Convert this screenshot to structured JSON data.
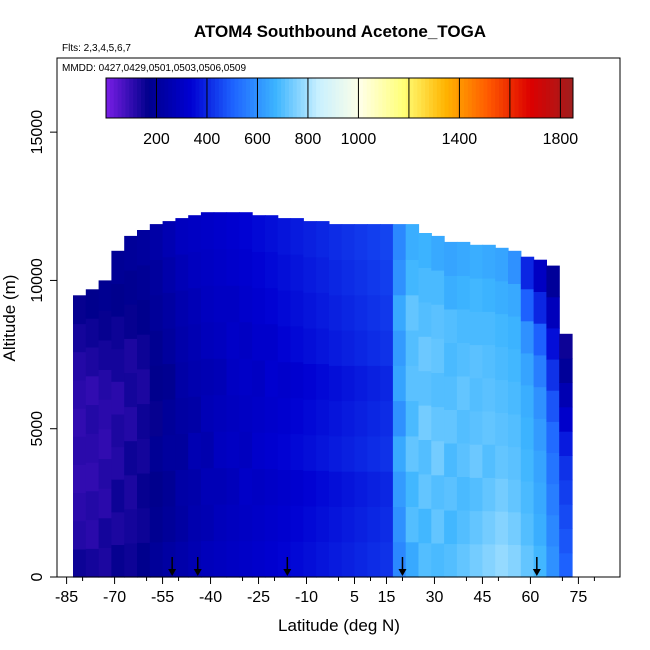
{
  "chart_data": {
    "type": "heatmap",
    "title": "ATOM4 Southbound Acetone_TOGA",
    "flights_note": "Flts: 2,3,4,5,6,7",
    "dates_note": "MMDD: 0427,0429,0501,0503,0506,0509",
    "xlabel": "Latitude (deg N)",
    "ylabel": "Altitude (m)",
    "xlim": [
      -88,
      88
    ],
    "ylim": [
      0,
      17500
    ],
    "xticks": [
      -85,
      -70,
      -55,
      -40,
      -25,
      -10,
      5,
      15,
      30,
      45,
      60,
      75
    ],
    "yticks": [
      0,
      5000,
      10000,
      15000
    ],
    "colorbar": {
      "min": 0,
      "max": 1850,
      "labels": [
        200,
        400,
        600,
        800,
        1000,
        1400,
        1800
      ],
      "divisions": [
        200,
        400,
        600,
        800,
        1000,
        1200,
        1400,
        1600,
        1800
      ],
      "colors": [
        "#7a1ee6",
        "#00008c",
        "#0000d2",
        "#1e64ff",
        "#3cb4ff",
        "#c8f0ff",
        "#ffffe6",
        "#ffff78",
        "#ffb400",
        "#ff5a00",
        "#dc0000",
        "#a01e1e"
      ]
    },
    "profile_columns": [
      {
        "lat": -81,
        "top": 9500,
        "values": [
          150,
          120,
          110,
          100,
          110,
          100,
          110,
          120,
          140,
          160
        ]
      },
      {
        "lat": -77,
        "top": 9700,
        "values": [
          140,
          110,
          120,
          100,
          110,
          120,
          100,
          130,
          150,
          170
        ]
      },
      {
        "lat": -73,
        "top": 10000,
        "values": [
          130,
          140,
          110,
          120,
          100,
          110,
          120,
          140,
          160,
          180
        ]
      },
      {
        "lat": -69,
        "top": 11000,
        "values": [
          160,
          130,
          150,
          120,
          130,
          110,
          140,
          150,
          170,
          190
        ]
      },
      {
        "lat": -65,
        "top": 11500,
        "values": [
          150,
          140,
          130,
          150,
          120,
          140,
          130,
          160,
          180,
          200
        ]
      },
      {
        "lat": -61,
        "top": 11700,
        "values": [
          170,
          150,
          160,
          140,
          150,
          130,
          150,
          170,
          190,
          210
        ]
      },
      {
        "lat": -57,
        "top": 11900,
        "values": [
          200,
          180,
          170,
          190,
          160,
          170,
          180,
          200,
          210,
          230
        ]
      },
      {
        "lat": -53,
        "top": 12000,
        "values": [
          220,
          200,
          190,
          210,
          200,
          180,
          210,
          220,
          240,
          260
        ]
      },
      {
        "lat": -49,
        "top": 12100,
        "values": [
          240,
          220,
          230,
          210,
          220,
          230,
          240,
          250,
          270,
          290
        ]
      },
      {
        "lat": -45,
        "top": 12200,
        "values": [
          260,
          250,
          240,
          260,
          230,
          250,
          260,
          270,
          290,
          300
        ]
      },
      {
        "lat": -41,
        "top": 12300,
        "values": [
          280,
          260,
          270,
          250,
          270,
          260,
          280,
          290,
          300,
          310
        ]
      },
      {
        "lat": -37,
        "top": 12300,
        "values": [
          290,
          280,
          270,
          290,
          280,
          270,
          290,
          300,
          310,
          320
        ]
      },
      {
        "lat": -33,
        "top": 12300,
        "values": [
          300,
          290,
          280,
          300,
          290,
          300,
          310,
          300,
          320,
          330
        ]
      },
      {
        "lat": -29,
        "top": 12300,
        "values": [
          310,
          300,
          310,
          290,
          300,
          310,
          300,
          320,
          330,
          340
        ]
      },
      {
        "lat": -25,
        "top": 12200,
        "values": [
          320,
          310,
          300,
          320,
          310,
          300,
          320,
          330,
          340,
          350
        ]
      },
      {
        "lat": -21,
        "top": 12200,
        "values": [
          330,
          320,
          310,
          330,
          320,
          330,
          320,
          340,
          350,
          360
        ]
      },
      {
        "lat": -17,
        "top": 12100,
        "values": [
          340,
          330,
          320,
          340,
          330,
          320,
          340,
          350,
          360,
          370
        ]
      },
      {
        "lat": -13,
        "top": 12100,
        "values": [
          350,
          340,
          330,
          350,
          340,
          330,
          350,
          360,
          370,
          380
        ]
      },
      {
        "lat": -9,
        "top": 12000,
        "values": [
          360,
          350,
          340,
          360,
          350,
          340,
          360,
          370,
          380,
          390
        ]
      },
      {
        "lat": -5,
        "top": 12000,
        "values": [
          370,
          360,
          350,
          370,
          360,
          350,
          370,
          380,
          390,
          400
        ]
      },
      {
        "lat": -1,
        "top": 11900,
        "values": [
          380,
          370,
          360,
          380,
          370,
          360,
          380,
          390,
          400,
          410
        ]
      },
      {
        "lat": 3,
        "top": 11900,
        "values": [
          390,
          380,
          370,
          390,
          380,
          370,
          390,
          400,
          410,
          420
        ]
      },
      {
        "lat": 7,
        "top": 11900,
        "values": [
          400,
          390,
          380,
          400,
          390,
          380,
          400,
          410,
          420,
          430
        ]
      },
      {
        "lat": 11,
        "top": 11900,
        "values": [
          410,
          400,
          390,
          410,
          400,
          390,
          410,
          420,
          430,
          440
        ]
      },
      {
        "lat": 15,
        "top": 11900,
        "values": [
          420,
          410,
          400,
          420,
          410,
          400,
          420,
          430,
          440,
          450
        ]
      },
      {
        "lat": 19,
        "top": 11900,
        "values": [
          580,
          600,
          620,
          650,
          600,
          640,
          620,
          650,
          600,
          580
        ]
      },
      {
        "lat": 23,
        "top": 11900,
        "values": [
          650,
          700,
          680,
          720,
          690,
          710,
          700,
          720,
          680,
          660
        ]
      },
      {
        "lat": 27,
        "top": 11600,
        "values": [
          700,
          680,
          720,
          700,
          740,
          710,
          730,
          700,
          690,
          670
        ]
      },
      {
        "lat": 31,
        "top": 11500,
        "values": [
          690,
          720,
          700,
          740,
          720,
          700,
          720,
          710,
          690,
          650
        ]
      },
      {
        "lat": 35,
        "top": 11300,
        "values": [
          700,
          680,
          710,
          690,
          720,
          700,
          690,
          700,
          660,
          640
        ]
      },
      {
        "lat": 39,
        "top": 11300,
        "values": [
          720,
          700,
          690,
          710,
          700,
          720,
          700,
          690,
          670,
          650
        ]
      },
      {
        "lat": 43,
        "top": 11200,
        "values": [
          740,
          720,
          700,
          730,
          710,
          700,
          710,
          690,
          680,
          660
        ]
      },
      {
        "lat": 47,
        "top": 11200,
        "values": [
          760,
          740,
          720,
          700,
          720,
          710,
          700,
          690,
          670,
          650
        ]
      },
      {
        "lat": 51,
        "top": 11100,
        "values": [
          780,
          760,
          740,
          720,
          710,
          700,
          690,
          680,
          660,
          640
        ]
      },
      {
        "lat": 55,
        "top": 11000,
        "values": [
          760,
          740,
          720,
          710,
          700,
          690,
          680,
          670,
          650,
          600
        ]
      },
      {
        "lat": 59,
        "top": 10800,
        "values": [
          720,
          700,
          690,
          680,
          670,
          660,
          640,
          600,
          500,
          400
        ]
      },
      {
        "lat": 63,
        "top": 10700,
        "values": [
          680,
          660,
          650,
          640,
          620,
          600,
          560,
          500,
          400,
          300
        ]
      },
      {
        "lat": 67,
        "top": 10500,
        "values": [
          600,
          580,
          560,
          540,
          520,
          480,
          420,
          360,
          280,
          200
        ]
      },
      {
        "lat": 71,
        "top": 8200,
        "values": [
          500,
          480,
          460,
          440,
          420,
          380,
          320,
          260,
          200,
          150
        ]
      }
    ],
    "sample_markers_lat": [
      -52,
      -44,
      -16,
      20,
      62
    ]
  }
}
